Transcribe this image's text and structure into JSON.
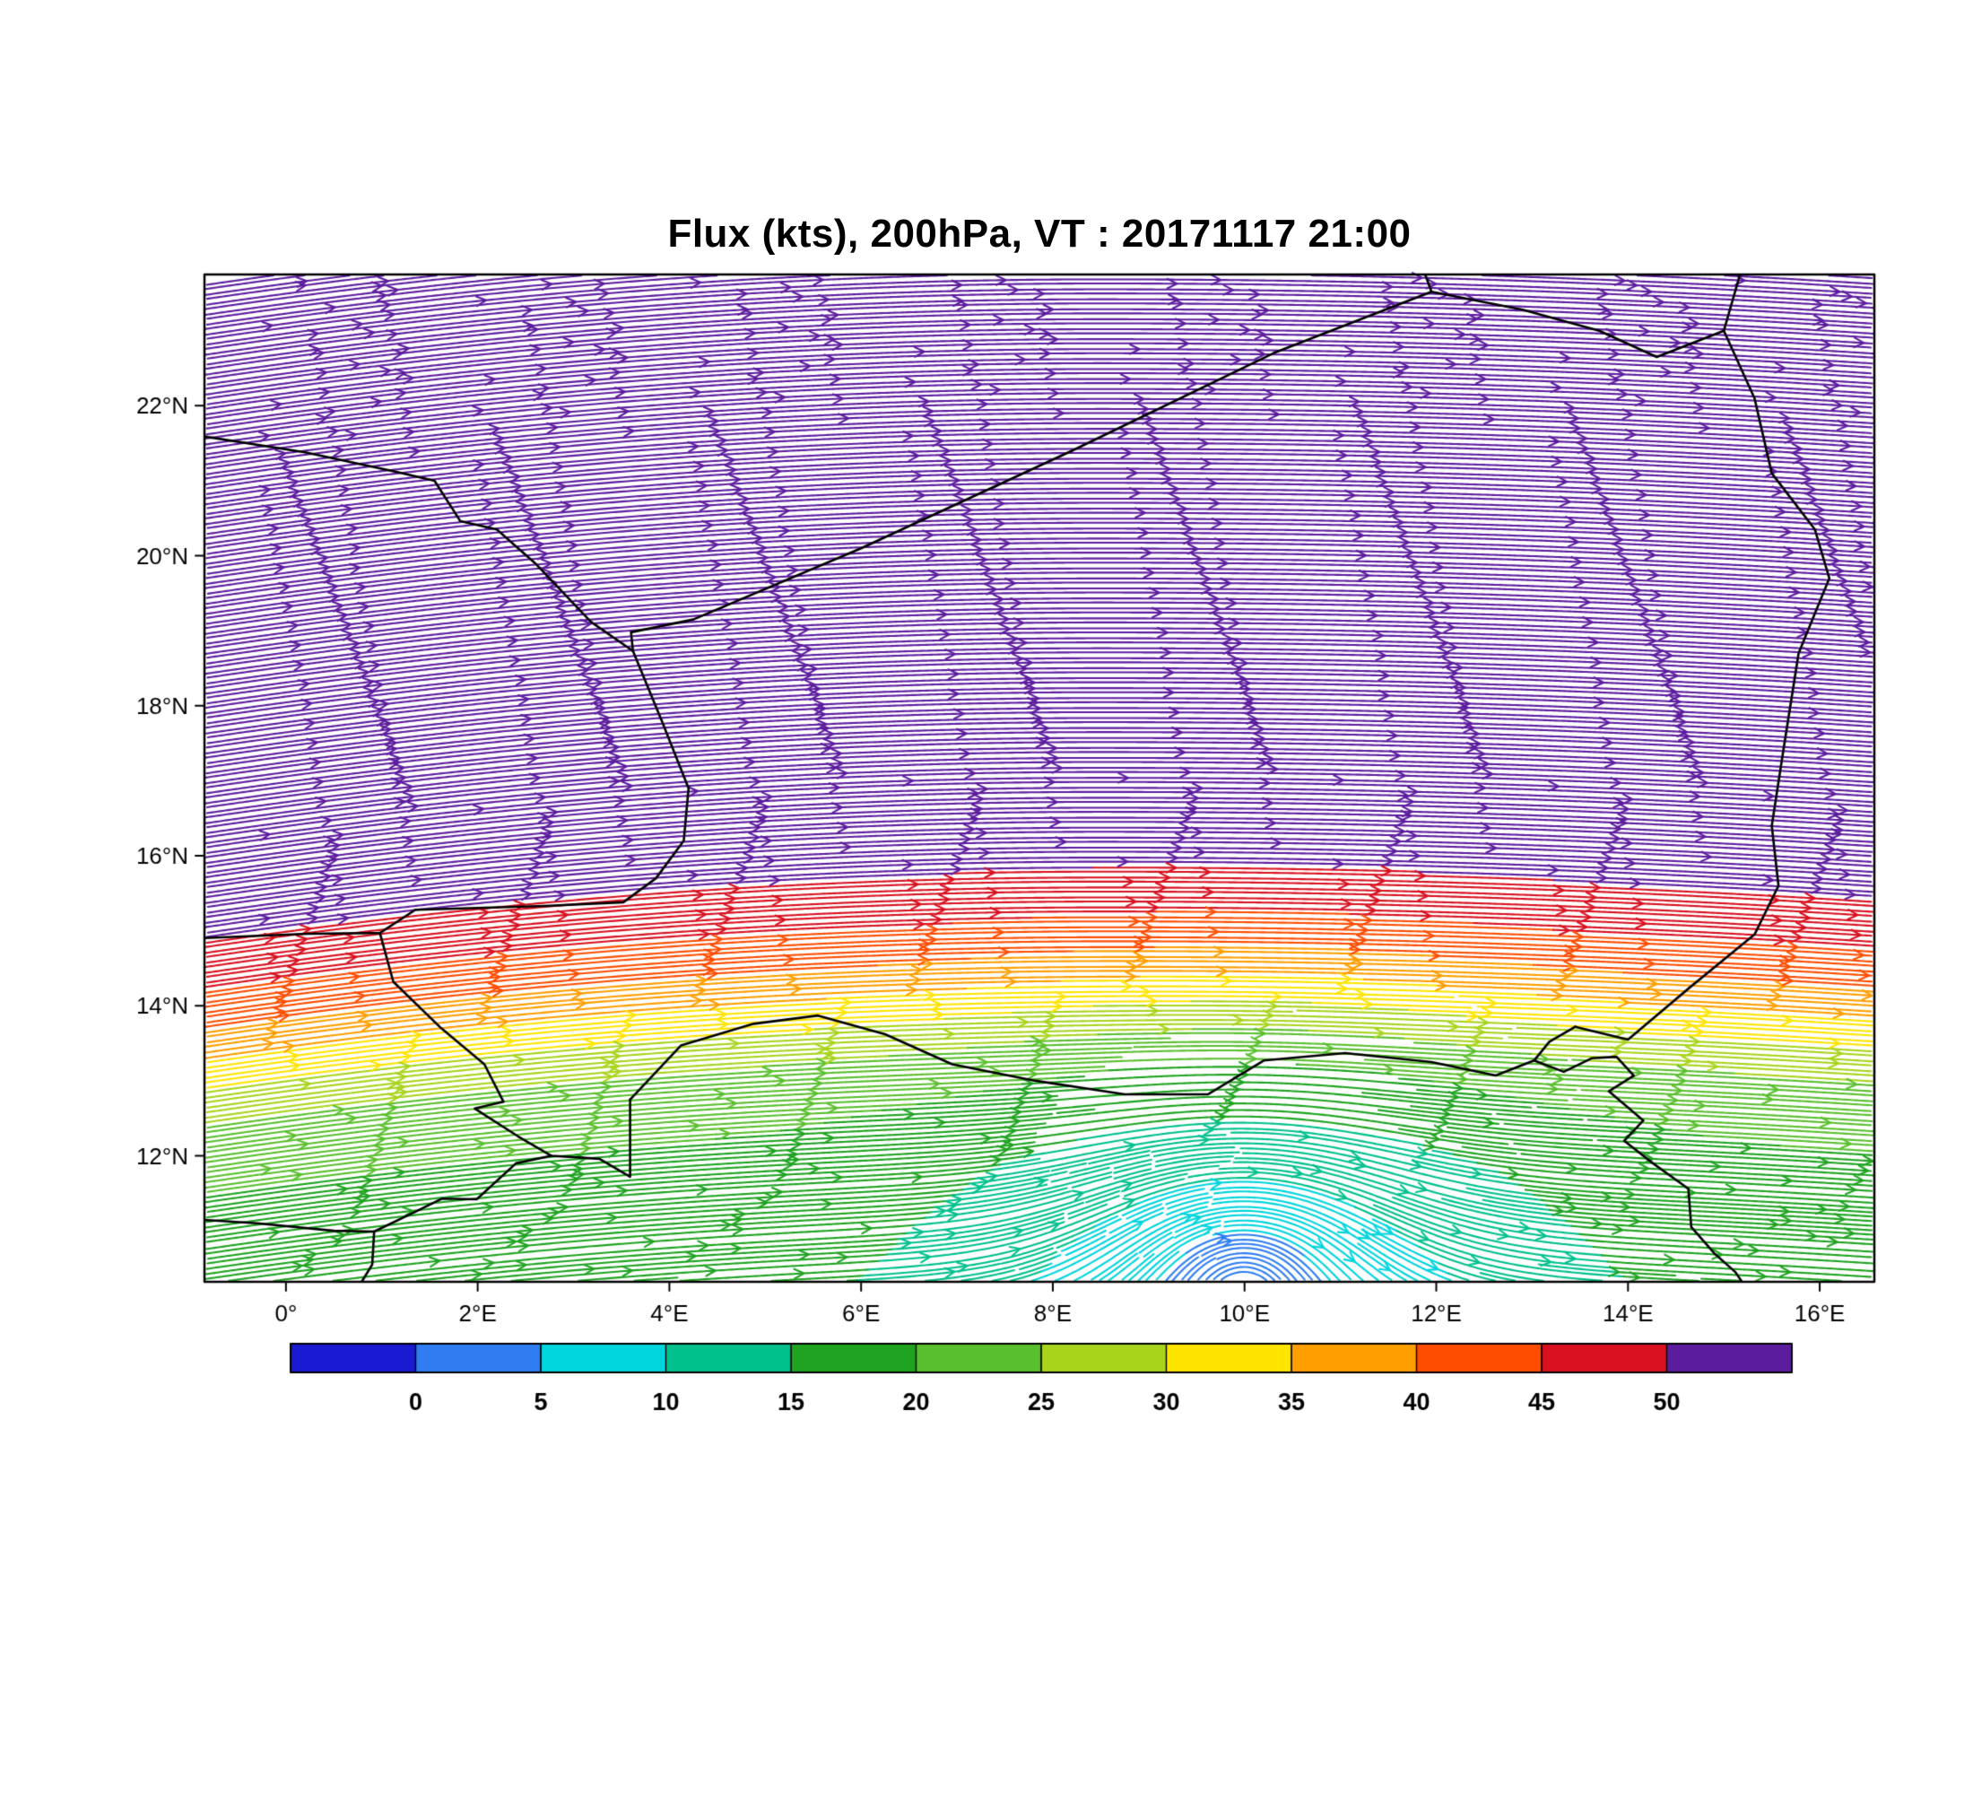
{
  "title": "Flux (kts), 200hPa, VT : 20171117  21:00",
  "chart_data": {
    "type": "streamline",
    "variable": "Flux",
    "units": "kts",
    "pressure_level": "200hPa",
    "valid_time": "20171117 21:00",
    "lon_range": [
      -0.85,
      16.57
    ],
    "lat_range": [
      10.32,
      23.75
    ],
    "x_ticks": [
      {
        "v": 0,
        "label": "0°"
      },
      {
        "v": 2,
        "label": "2°E"
      },
      {
        "v": 4,
        "label": "4°E"
      },
      {
        "v": 6,
        "label": "6°E"
      },
      {
        "v": 8,
        "label": "8°E"
      },
      {
        "v": 10,
        "label": "10°E"
      },
      {
        "v": 12,
        "label": "12°E"
      },
      {
        "v": 14,
        "label": "14°E"
      },
      {
        "v": 16,
        "label": "16°E"
      }
    ],
    "y_ticks": [
      {
        "v": 12,
        "label": "12°N"
      },
      {
        "v": 14,
        "label": "14°N"
      },
      {
        "v": 16,
        "label": "16°N"
      },
      {
        "v": 18,
        "label": "18°N"
      },
      {
        "v": 20,
        "label": "20°N"
      },
      {
        "v": 22,
        "label": "22°N"
      }
    ],
    "speed_levels": [
      0,
      5,
      10,
      15,
      20,
      25,
      30,
      35,
      40,
      45,
      50
    ],
    "palette": [
      "#1a1ad2",
      "#2f7df0",
      "#00d4dc",
      "#00c08c",
      "#1fa321",
      "#5abf2e",
      "#a8d41c",
      "#ffe400",
      "#ff9e00",
      "#ff4d00",
      "#d8101f",
      "#5c1c9e"
    ],
    "speed_profile": {
      "lat_deg": [
        10.3,
        11.0,
        11.9,
        12.65,
        13.3,
        13.75,
        14.15,
        14.55,
        15.05,
        15.75,
        16.4,
        18.0,
        23.9
      ],
      "speed_kts": [
        16,
        17,
        18.5,
        21,
        25,
        30,
        35,
        40,
        45,
        50,
        54,
        58,
        60
      ]
    },
    "ridge": {
      "crest_lon": 8.5,
      "west_curvature": 0.01,
      "east_curvature": 0.005
    },
    "vortex": {
      "center_lon": 10.0,
      "center_lat": 10.75,
      "rotation": "clockwise",
      "strength_kts": 6,
      "core_radius_deg": 2.0,
      "calm_radius_deg": 2.6,
      "calm_fraction": 0.8
    },
    "borders": [
      [
        [
          3.62,
          18.73
        ],
        [
          3.6,
          18.98
        ],
        [
          4.25,
          19.15
        ],
        [
          6.0,
          20.1
        ],
        [
          8.2,
          21.4
        ],
        [
          10.3,
          22.7
        ],
        [
          11.95,
          23.52
        ],
        [
          11.87,
          23.8
        ]
      ],
      [
        [
          11.95,
          23.52
        ],
        [
          12.9,
          23.28
        ],
        [
          13.7,
          23.0
        ],
        [
          14.3,
          22.65
        ],
        [
          15.0,
          23.0
        ],
        [
          15.18,
          23.8
        ]
      ],
      [
        [
          15.0,
          23.0
        ],
        [
          15.32,
          22.1
        ],
        [
          15.5,
          21.1
        ],
        [
          15.95,
          20.35
        ],
        [
          16.1,
          19.7
        ],
        [
          15.78,
          18.7
        ],
        [
          15.62,
          17.4
        ],
        [
          15.5,
          16.4
        ],
        [
          15.57,
          15.6
        ],
        [
          15.32,
          14.95
        ],
        [
          14.65,
          14.25
        ],
        [
          14.0,
          13.55
        ],
        [
          13.45,
          13.72
        ]
      ],
      [
        [
          13.45,
          13.72
        ],
        [
          13.18,
          13.52
        ],
        [
          13.02,
          13.27
        ],
        [
          13.33,
          13.12
        ],
        [
          13.62,
          13.3
        ],
        [
          13.88,
          13.32
        ],
        [
          14.06,
          13.07
        ],
        [
          13.8,
          12.86
        ],
        [
          14.16,
          12.47
        ],
        [
          13.96,
          12.2
        ],
        [
          14.26,
          11.9
        ],
        [
          14.63,
          11.56
        ],
        [
          14.66,
          11.05
        ],
        [
          14.9,
          10.7
        ],
        [
          15.12,
          10.45
        ],
        [
          15.2,
          10.3
        ]
      ],
      [
        [
          3.59,
          12.75
        ],
        [
          4.12,
          13.47
        ],
        [
          4.88,
          13.76
        ],
        [
          5.55,
          13.87
        ],
        [
          6.25,
          13.62
        ],
        [
          6.95,
          13.22
        ],
        [
          7.82,
          13.0
        ],
        [
          8.75,
          12.82
        ],
        [
          9.62,
          12.82
        ],
        [
          10.2,
          13.27
        ],
        [
          11.05,
          13.37
        ],
        [
          11.95,
          13.25
        ],
        [
          12.62,
          13.07
        ],
        [
          13.02,
          13.27
        ]
      ],
      [
        [
          3.62,
          18.73
        ],
        [
          3.92,
          17.8
        ],
        [
          4.2,
          16.9
        ],
        [
          4.15,
          16.2
        ],
        [
          3.86,
          15.7
        ],
        [
          3.52,
          15.38
        ],
        [
          2.7,
          15.33
        ],
        [
          1.35,
          15.28
        ],
        [
          0.98,
          14.97
        ],
        [
          0.23,
          14.96
        ],
        [
          -0.9,
          14.9
        ]
      ],
      [
        [
          0.98,
          14.97
        ],
        [
          1.12,
          14.32
        ],
        [
          1.62,
          13.7
        ],
        [
          2.07,
          13.22
        ],
        [
          2.27,
          12.72
        ],
        [
          1.97,
          12.63
        ],
        [
          2.42,
          12.26
        ],
        [
          2.77,
          12.0
        ],
        [
          3.27,
          11.96
        ],
        [
          3.59,
          11.72
        ],
        [
          3.59,
          12.75
        ]
      ],
      [
        [
          -0.9,
          11.15
        ],
        [
          -0.3,
          11.1
        ],
        [
          0.5,
          11.0
        ],
        [
          0.92,
          10.99
        ],
        [
          1.36,
          11.26
        ],
        [
          1.63,
          11.43
        ],
        [
          1.99,
          11.42
        ],
        [
          2.4,
          11.9
        ],
        [
          2.77,
          12.0
        ]
      ],
      [
        [
          0.92,
          10.99
        ],
        [
          0.9,
          10.55
        ],
        [
          0.78,
          10.3
        ]
      ],
      [
        [
          3.62,
          18.73
        ],
        [
          3.18,
          19.12
        ],
        [
          2.6,
          19.9
        ],
        [
          2.2,
          20.35
        ],
        [
          1.82,
          20.46
        ],
        [
          1.55,
          21.0
        ],
        [
          1.15,
          21.12
        ],
        [
          0.2,
          21.38
        ],
        [
          -0.9,
          21.6
        ]
      ]
    ]
  },
  "colorbar": {
    "labels": [
      "0",
      "5",
      "10",
      "15",
      "20",
      "25",
      "30",
      "35",
      "40",
      "45",
      "50"
    ]
  }
}
